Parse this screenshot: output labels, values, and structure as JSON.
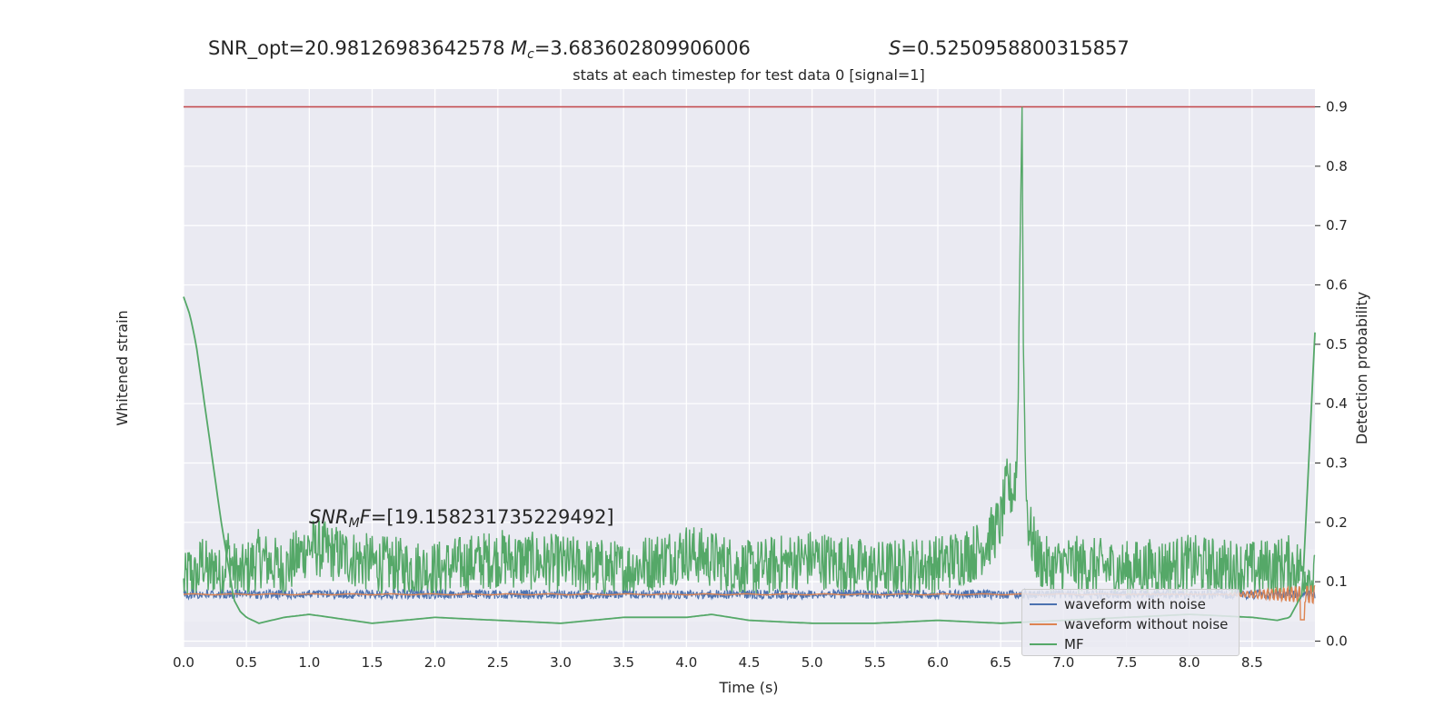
{
  "header": {
    "snr_opt": "SNR_opt=20.98126983642578",
    "mc_symbol": "M",
    "mc_sub": "c",
    "mc_value": "=3.683602809906006",
    "s_symbol": "S",
    "s_value": "=0.5250958800315857"
  },
  "annotation": {
    "snr_mf_prefix": "SNR",
    "snr_mf_sub": "M",
    "snr_mf_f": "F",
    "snr_mf_value": "=[19.158231735229492]"
  },
  "colors": {
    "background": "#eaeaf2",
    "grid": "#ffffff",
    "noisy": "#4c72b0",
    "clean": "#dd8452",
    "mf": "#55a868",
    "threshold": "#c44e52"
  },
  "chart_data": {
    "type": "line",
    "title": "stats at each timestep for test data 0 [signal=1]",
    "xlabel": "Time (s)",
    "ylabel_left": "Whitened strain",
    "ylabel_right": "Detection probability",
    "xlim": [
      0.0,
      9.0
    ],
    "ylim_right": [
      -0.01,
      0.93
    ],
    "x_ticks": [
      "0.0",
      "0.5",
      "1.0",
      "1.5",
      "2.0",
      "2.5",
      "3.0",
      "3.5",
      "4.0",
      "4.5",
      "5.0",
      "5.5",
      "6.0",
      "6.5",
      "7.0",
      "7.5",
      "8.0",
      "8.5"
    ],
    "y_ticks_right": [
      "0.0",
      "0.1",
      "0.2",
      "0.3",
      "0.4",
      "0.5",
      "0.6",
      "0.7",
      "0.8",
      "0.9"
    ],
    "threshold": 0.9,
    "series": [
      {
        "name": "waveform with noise"
      },
      {
        "name": "waveform without noise"
      },
      {
        "name": "MF"
      }
    ],
    "detection_probability": {
      "x": [
        0.0,
        0.05,
        0.1,
        0.15,
        0.2,
        0.25,
        0.3,
        0.35,
        0.4,
        0.45,
        0.5,
        0.6,
        0.8,
        1.0,
        1.5,
        2.0,
        2.5,
        3.0,
        3.5,
        4.0,
        4.5,
        5.0,
        5.5,
        6.0,
        6.3,
        6.4,
        6.5,
        6.55,
        6.6,
        6.63,
        6.65,
        6.67,
        6.68,
        6.7,
        6.72,
        6.75,
        6.8,
        6.9,
        7.0,
        7.5,
        8.0,
        8.5,
        8.8,
        8.9,
        8.95,
        9.0
      ],
      "y": [
        0.09,
        0.12,
        0.1,
        0.14,
        0.11,
        0.13,
        0.1,
        0.15,
        0.12,
        0.11,
        0.12,
        0.14,
        0.12,
        0.16,
        0.13,
        0.12,
        0.14,
        0.13,
        0.12,
        0.15,
        0.12,
        0.14,
        0.12,
        0.13,
        0.15,
        0.17,
        0.2,
        0.26,
        0.25,
        0.3,
        0.6,
        0.9,
        0.5,
        0.26,
        0.2,
        0.17,
        0.14,
        0.12,
        0.13,
        0.12,
        0.13,
        0.12,
        0.13,
        0.12,
        0.11,
        0.1
      ]
    },
    "mf_curve": {
      "x": [
        0.0,
        0.05,
        0.1,
        0.2,
        0.3,
        0.4,
        0.45,
        0.5,
        0.6,
        0.8,
        1.0,
        1.5,
        2.0,
        2.5,
        3.0,
        3.5,
        4.0,
        4.2,
        4.5,
        5.0,
        5.5,
        6.0,
        6.5,
        7.0,
        7.5,
        8.0,
        8.5,
        8.7,
        8.8,
        8.9,
        8.95,
        9.0
      ],
      "y": [
        0.58,
        0.55,
        0.5,
        0.35,
        0.2,
        0.07,
        0.05,
        0.04,
        0.03,
        0.04,
        0.045,
        0.03,
        0.04,
        0.035,
        0.03,
        0.04,
        0.04,
        0.045,
        0.035,
        0.03,
        0.03,
        0.035,
        0.03,
        0.035,
        0.04,
        0.045,
        0.04,
        0.035,
        0.04,
        0.08,
        0.3,
        0.52
      ]
    }
  }
}
